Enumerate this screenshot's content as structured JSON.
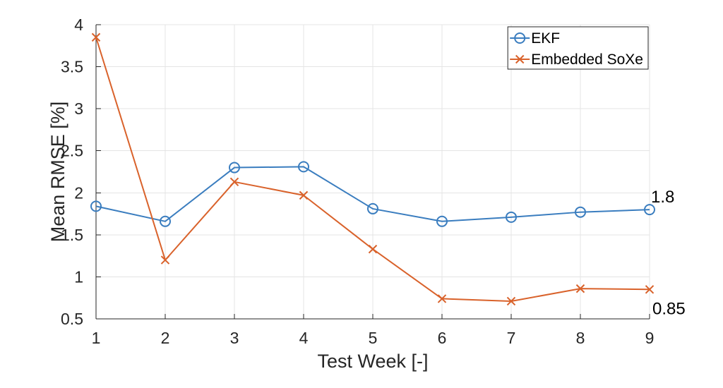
{
  "chart_data": {
    "type": "line",
    "xlabel": "Test Week [-]",
    "ylabel": "Mean RMSE [%]",
    "x": [
      1,
      2,
      3,
      4,
      5,
      6,
      7,
      8,
      9
    ],
    "xlim": [
      1,
      9
    ],
    "ylim": [
      0.5,
      4
    ],
    "xticks": [
      1,
      2,
      3,
      4,
      5,
      6,
      7,
      8,
      9
    ],
    "yticks": [
      0.5,
      1,
      1.5,
      2,
      2.5,
      3,
      3.5,
      4
    ],
    "grid": true,
    "legend": "top-right",
    "series": [
      {
        "name": "EKF",
        "color": "#3a7dbf",
        "marker": "circle",
        "values": [
          1.84,
          1.66,
          2.3,
          2.31,
          1.81,
          1.66,
          1.71,
          1.77,
          1.8
        ]
      },
      {
        "name": "Embedded SoXe",
        "color": "#d9622b",
        "marker": "x",
        "values": [
          3.85,
          1.2,
          2.13,
          1.97,
          1.33,
          0.74,
          0.71,
          0.86,
          0.85
        ]
      }
    ],
    "annotations": [
      {
        "text": "1.8",
        "x": 9,
        "y": 1.8
      },
      {
        "text": "0.85",
        "x": 9,
        "y": 0.85
      }
    ]
  }
}
